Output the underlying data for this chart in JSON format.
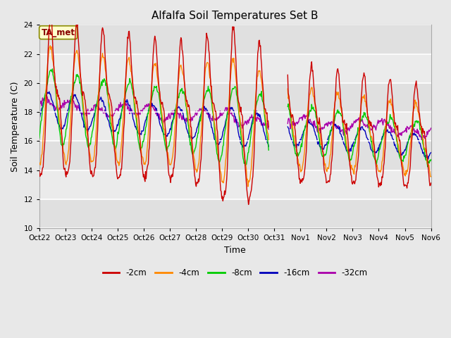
{
  "title": "Alfalfa Soil Temperatures Set B",
  "xlabel": "Time",
  "ylabel": "Soil Temperature (C)",
  "ylim": [
    10,
    24
  ],
  "yticks": [
    10,
    12,
    14,
    16,
    18,
    20,
    22,
    24
  ],
  "fig_bg_color": "#e8e8e8",
  "plot_bg_color": "#e8e8e8",
  "line_colors": {
    "-2cm": "#cc0000",
    "-4cm": "#ff8800",
    "-8cm": "#00cc00",
    "-16cm": "#0000bb",
    "-32cm": "#aa00aa"
  },
  "ta_met_box_color": "#ffffcc",
  "ta_met_text_color": "#880000",
  "ta_met_border_color": "#888800",
  "x_tick_labels": [
    "Oct 22",
    "Oct 23",
    "Oct 24",
    "Oct 25",
    "Oct 26",
    "Oct 27",
    "Oct 28",
    "Oct 29",
    "Oct 30",
    "Oct 31",
    "Nov 1",
    "Nov 2",
    "Nov 3",
    "Nov 4",
    "Nov 5",
    "Nov 6"
  ],
  "num_days": 15,
  "pts_per_day": 48
}
